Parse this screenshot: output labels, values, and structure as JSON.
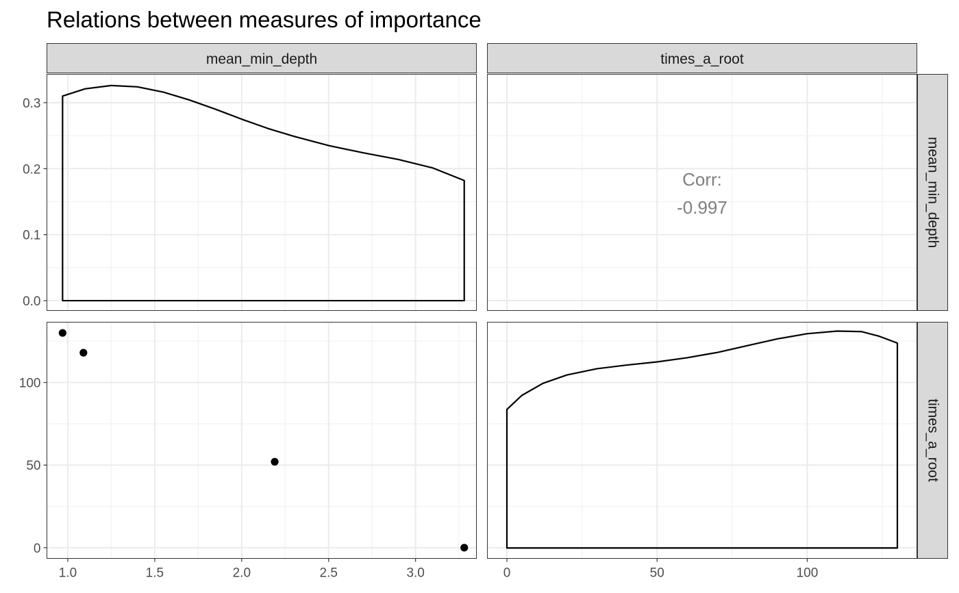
{
  "chart_data": {
    "type": "scatter",
    "title": "Relations between measures of importance",
    "variables": [
      "mean_min_depth",
      "times_a_root"
    ],
    "column_strips": [
      "mean_min_depth",
      "times_a_root"
    ],
    "row_strips": [
      "mean_min_depth",
      "times_a_root"
    ],
    "grid": true,
    "axes": {
      "mean_min_depth_x": {
        "range": [
          0.88,
          3.35
        ],
        "ticks": [
          1.0,
          1.5,
          2.0,
          2.5,
          3.0
        ],
        "tick_labels": [
          "1.0",
          "1.5",
          "2.0",
          "2.5",
          "3.0"
        ]
      },
      "times_a_root_x": {
        "range": [
          -6.5,
          136.5
        ],
        "ticks": [
          0,
          50,
          100
        ],
        "tick_labels": [
          "0",
          "50",
          "100"
        ]
      },
      "density_y": {
        "range": [
          -0.015,
          0.343
        ],
        "ticks": [
          0.0,
          0.1,
          0.2,
          0.3
        ],
        "tick_labels": [
          "0.0",
          "0.1",
          "0.2",
          "0.3"
        ]
      },
      "times_a_root_y": {
        "range": [
          -6.5,
          136.5
        ],
        "ticks": [
          0,
          50,
          100
        ],
        "tick_labels": [
          "0",
          "50",
          "100"
        ]
      }
    },
    "panels": {
      "density_mean_min_depth": {
        "x": [
          0.97,
          1.1,
          1.25,
          1.4,
          1.55,
          1.7,
          1.85,
          2.0,
          2.15,
          2.3,
          2.5,
          2.7,
          2.9,
          3.1,
          3.28
        ],
        "y": [
          0.31,
          0.321,
          0.326,
          0.324,
          0.316,
          0.304,
          0.29,
          0.275,
          0.261,
          0.249,
          0.235,
          0.224,
          0.214,
          0.201,
          0.182
        ]
      },
      "correlation": {
        "label": "Corr:",
        "value": "-0.997"
      },
      "scatter": {
        "x": [
          0.97,
          1.09,
          2.19,
          3.28
        ],
        "y": [
          130,
          118,
          52,
          0
        ]
      },
      "density_times_a_root": {
        "x": [
          0,
          5,
          12,
          20,
          30,
          40,
          50,
          60,
          70,
          80,
          90,
          100,
          110,
          118,
          124,
          130
        ],
        "y_norm": [
          0.265,
          0.292,
          0.315,
          0.331,
          0.343,
          0.35,
          0.356,
          0.364,
          0.374,
          0.387,
          0.4,
          0.41,
          0.415,
          0.414,
          0.405,
          0.392
        ]
      }
    }
  }
}
